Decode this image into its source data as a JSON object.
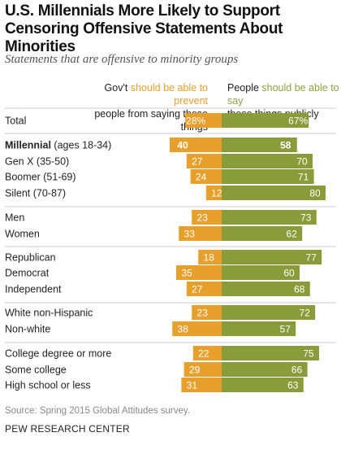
{
  "title": "U.S. Millennials More Likely to Support Censoring Offensive Statements About Minorities",
  "subtitle": "Statements that are offensive to minority groups",
  "headers": {
    "left_a": "Gov't ",
    "left_b": "should be able to prevent",
    "left_c": "people from saying these things",
    "right_a": "People ",
    "right_b": "should be able to say",
    "right_c": "these things publicly"
  },
  "colors": {
    "orange": "#e8a02d",
    "green": "#8a9b3a",
    "divider": "#cccccc"
  },
  "chart_data": {
    "type": "bar",
    "orientation": "horizontal-diverging",
    "series": [
      {
        "name": "Gov't should be able to prevent people from saying these things",
        "values": [
          28,
          40,
          27,
          24,
          12,
          23,
          33,
          18,
          35,
          27,
          23,
          38,
          22,
          29,
          31
        ],
        "labels": [
          "28%",
          "40",
          "27",
          "24",
          "12",
          "23",
          "33",
          "18",
          "35",
          "27",
          "23",
          "38",
          "22",
          "29",
          "31"
        ]
      },
      {
        "name": "People should be able to say these things publicly",
        "values": [
          67,
          58,
          70,
          71,
          80,
          73,
          62,
          77,
          60,
          68,
          72,
          57,
          75,
          66,
          63
        ],
        "labels": [
          "67%",
          "58",
          "70",
          "71",
          "80",
          "73",
          "62",
          "77",
          "60",
          "68",
          "72",
          "57",
          "75",
          "66",
          "63"
        ]
      }
    ],
    "categories": [
      "Total",
      "Millennial (ages 18-34)",
      "Gen X (35-50)",
      "Boomer (51-69)",
      "Silent (70-87)",
      "Men",
      "Women",
      "Republican",
      "Democrat",
      "Independent",
      "White non-Hispanic",
      "Non-white",
      "College degree or more",
      "Some college",
      "High school or less"
    ],
    "category_parts": [
      {
        "bold": "",
        "rest": "Total"
      },
      {
        "bold": "Millennial",
        "rest": " (ages 18-34)"
      },
      {
        "bold": "",
        "rest": "Gen X (35-50)"
      },
      {
        "bold": "",
        "rest": "Boomer (51-69)"
      },
      {
        "bold": "",
        "rest": "Silent (70-87)"
      },
      {
        "bold": "",
        "rest": "Men"
      },
      {
        "bold": "",
        "rest": "Women"
      },
      {
        "bold": "",
        "rest": "Republican"
      },
      {
        "bold": "",
        "rest": "Democrat"
      },
      {
        "bold": "",
        "rest": "Independent"
      },
      {
        "bold": "",
        "rest": "White non-Hispanic"
      },
      {
        "bold": "",
        "rest": "Non-white"
      },
      {
        "bold": "",
        "rest": "College degree or more"
      },
      {
        "bold": "",
        "rest": "Some college"
      },
      {
        "bold": "",
        "rest": "High school or less"
      }
    ],
    "emphasized_category": "Millennial (ages 18-34)",
    "group_dividers_after": [
      "Total",
      "Silent (70-87)",
      "Women",
      "Independent",
      "Non-white"
    ]
  },
  "source": "Source: Spring 2015 Global Attitudes survey.",
  "footer": "PEW RESEARCH CENTER"
}
